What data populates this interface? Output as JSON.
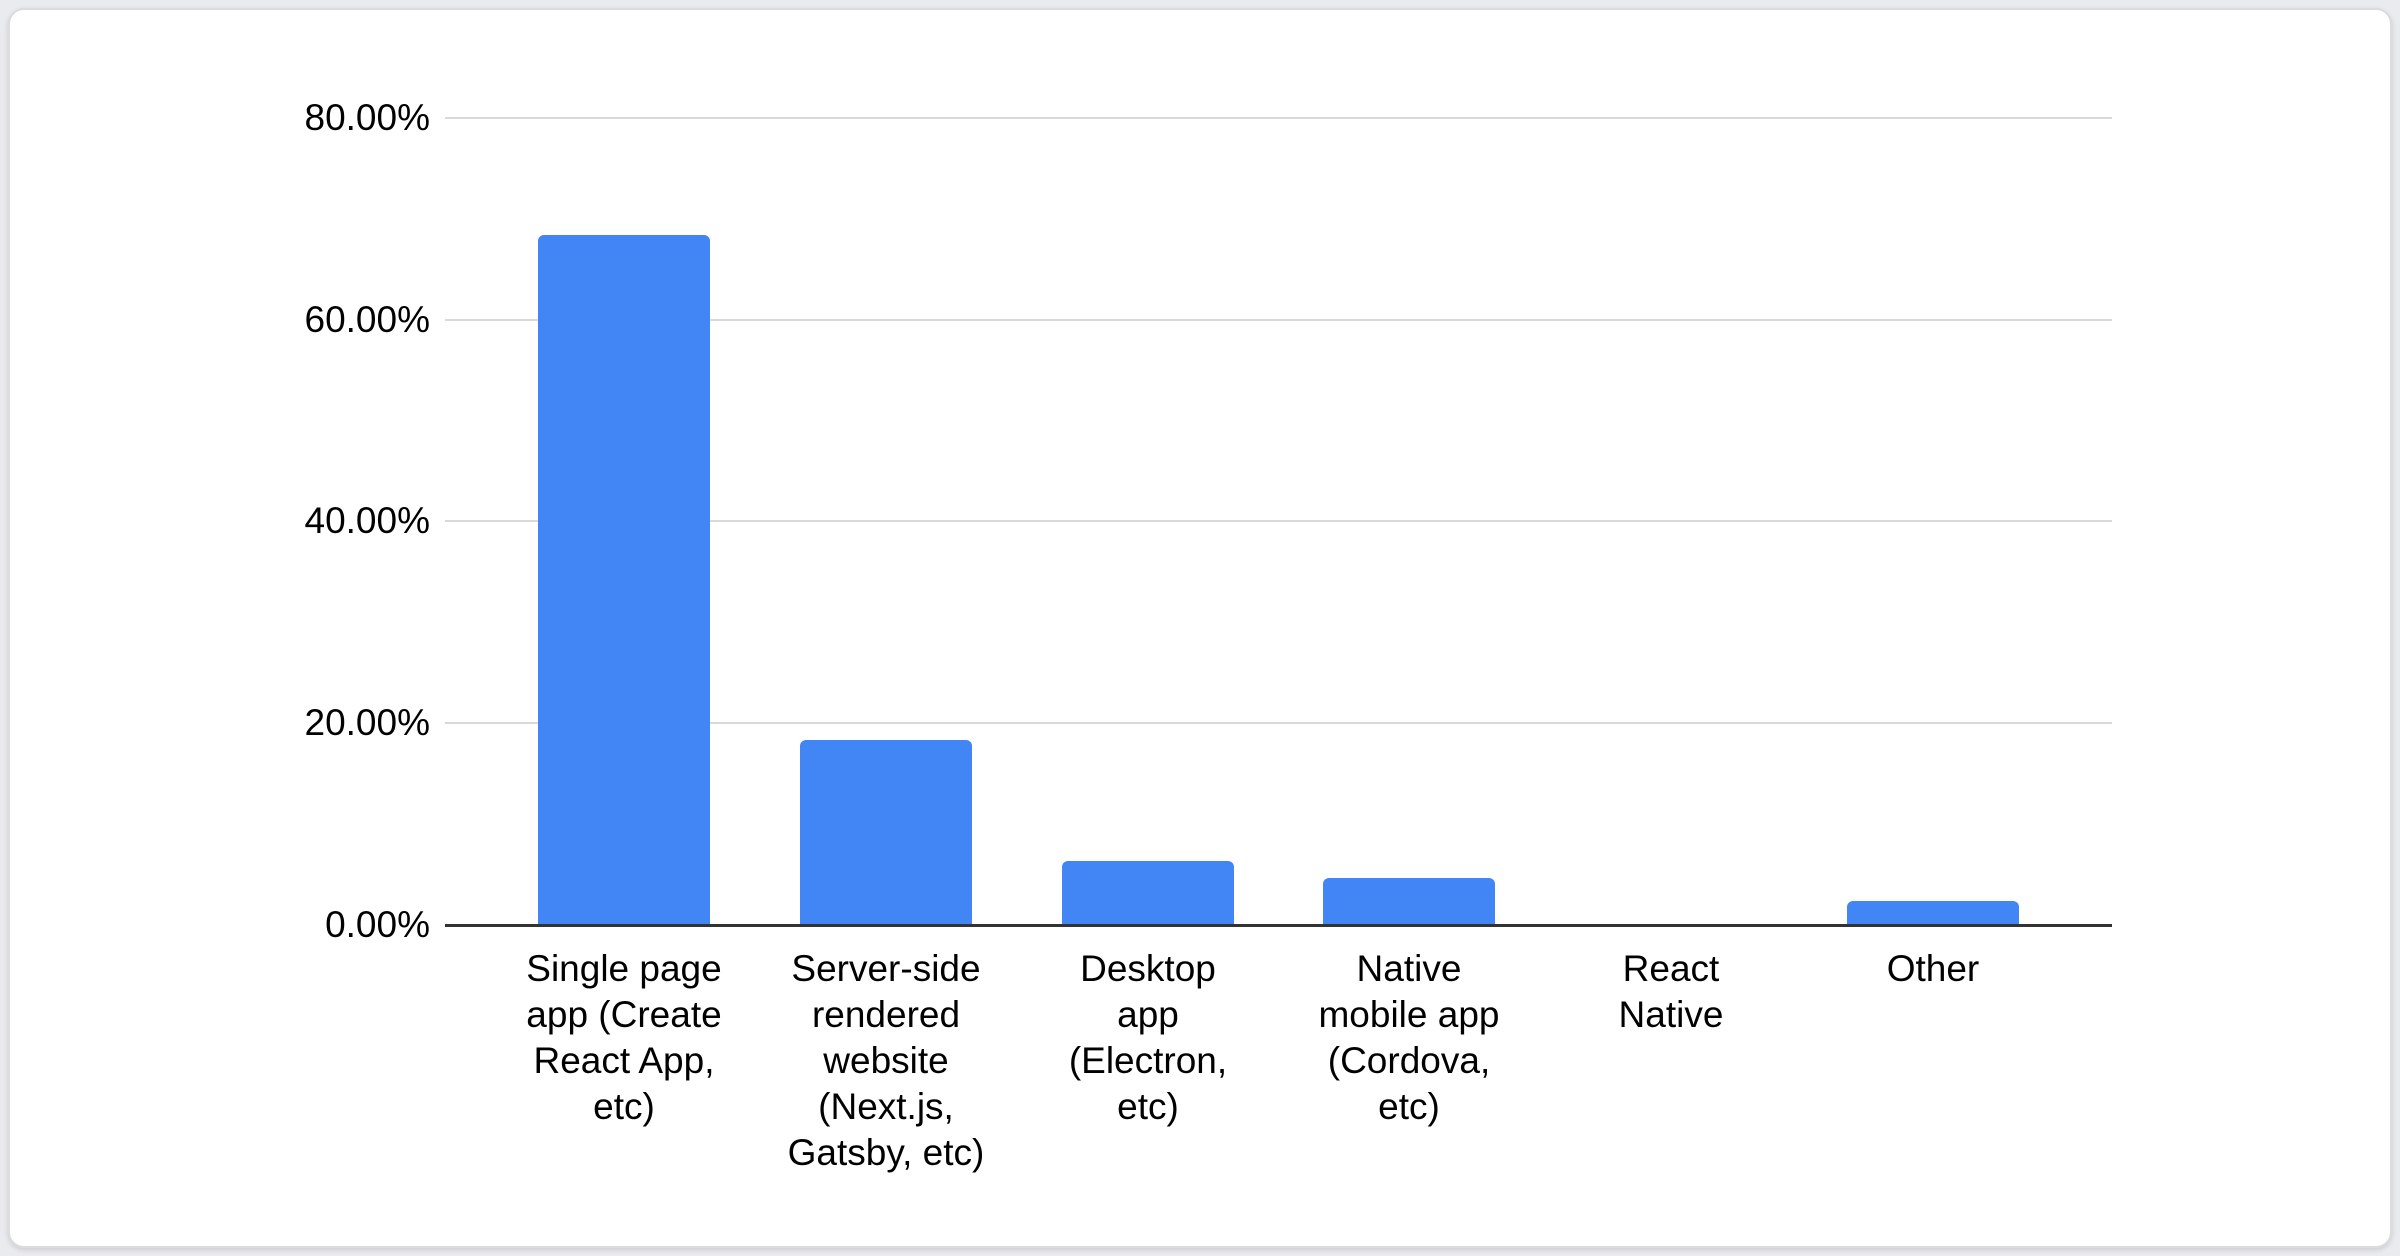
{
  "page": {
    "background_color": "#EAEBEE"
  },
  "card": {
    "background_color": "#FFFFFF",
    "border_color": "#DADCE0"
  },
  "chart_data": {
    "type": "bar",
    "title": "",
    "xlabel": "",
    "ylabel": "",
    "categories": [
      "Single page app (Create React App, etc)",
      "Server-side rendered website (Next.js, Gatsby, etc)",
      "Desktop app (Electron, etc)",
      "Native mobile app (Cordova, etc)",
      "React Native",
      "Other"
    ],
    "categories_wrapped": [
      "Single page\napp (Create\nReact App,\netc)",
      "Server-side\nrendered\nwebsite\n(Next.js,\nGatsby, etc)",
      "Desktop\napp\n(Electron,\netc)",
      "Native\nmobile app\n(Cordova,\netc)",
      "React\nNative",
      "Other"
    ],
    "category_ids": [
      "single-page-app",
      "server-side-rendered-website",
      "desktop-app",
      "native-mobile-app",
      "react-native",
      "other"
    ],
    "values": [
      68.4,
      18.3,
      6.3,
      4.7,
      0,
      2.4
    ],
    "value_unit": "%",
    "ylim": [
      0,
      80
    ],
    "yticks": [
      {
        "value": 80,
        "label": "80.00%"
      },
      {
        "value": 60,
        "label": "60.00%"
      },
      {
        "value": 40,
        "label": "40.00%"
      },
      {
        "value": 20,
        "label": "20.00%"
      },
      {
        "value": 0,
        "label": "0.00%"
      }
    ],
    "grid": true,
    "legend_position": "none",
    "bar_color": "#4285F4",
    "gridline_color": "#D9D9D9",
    "axis_line_color": "#333333",
    "text_color": "#000000"
  }
}
